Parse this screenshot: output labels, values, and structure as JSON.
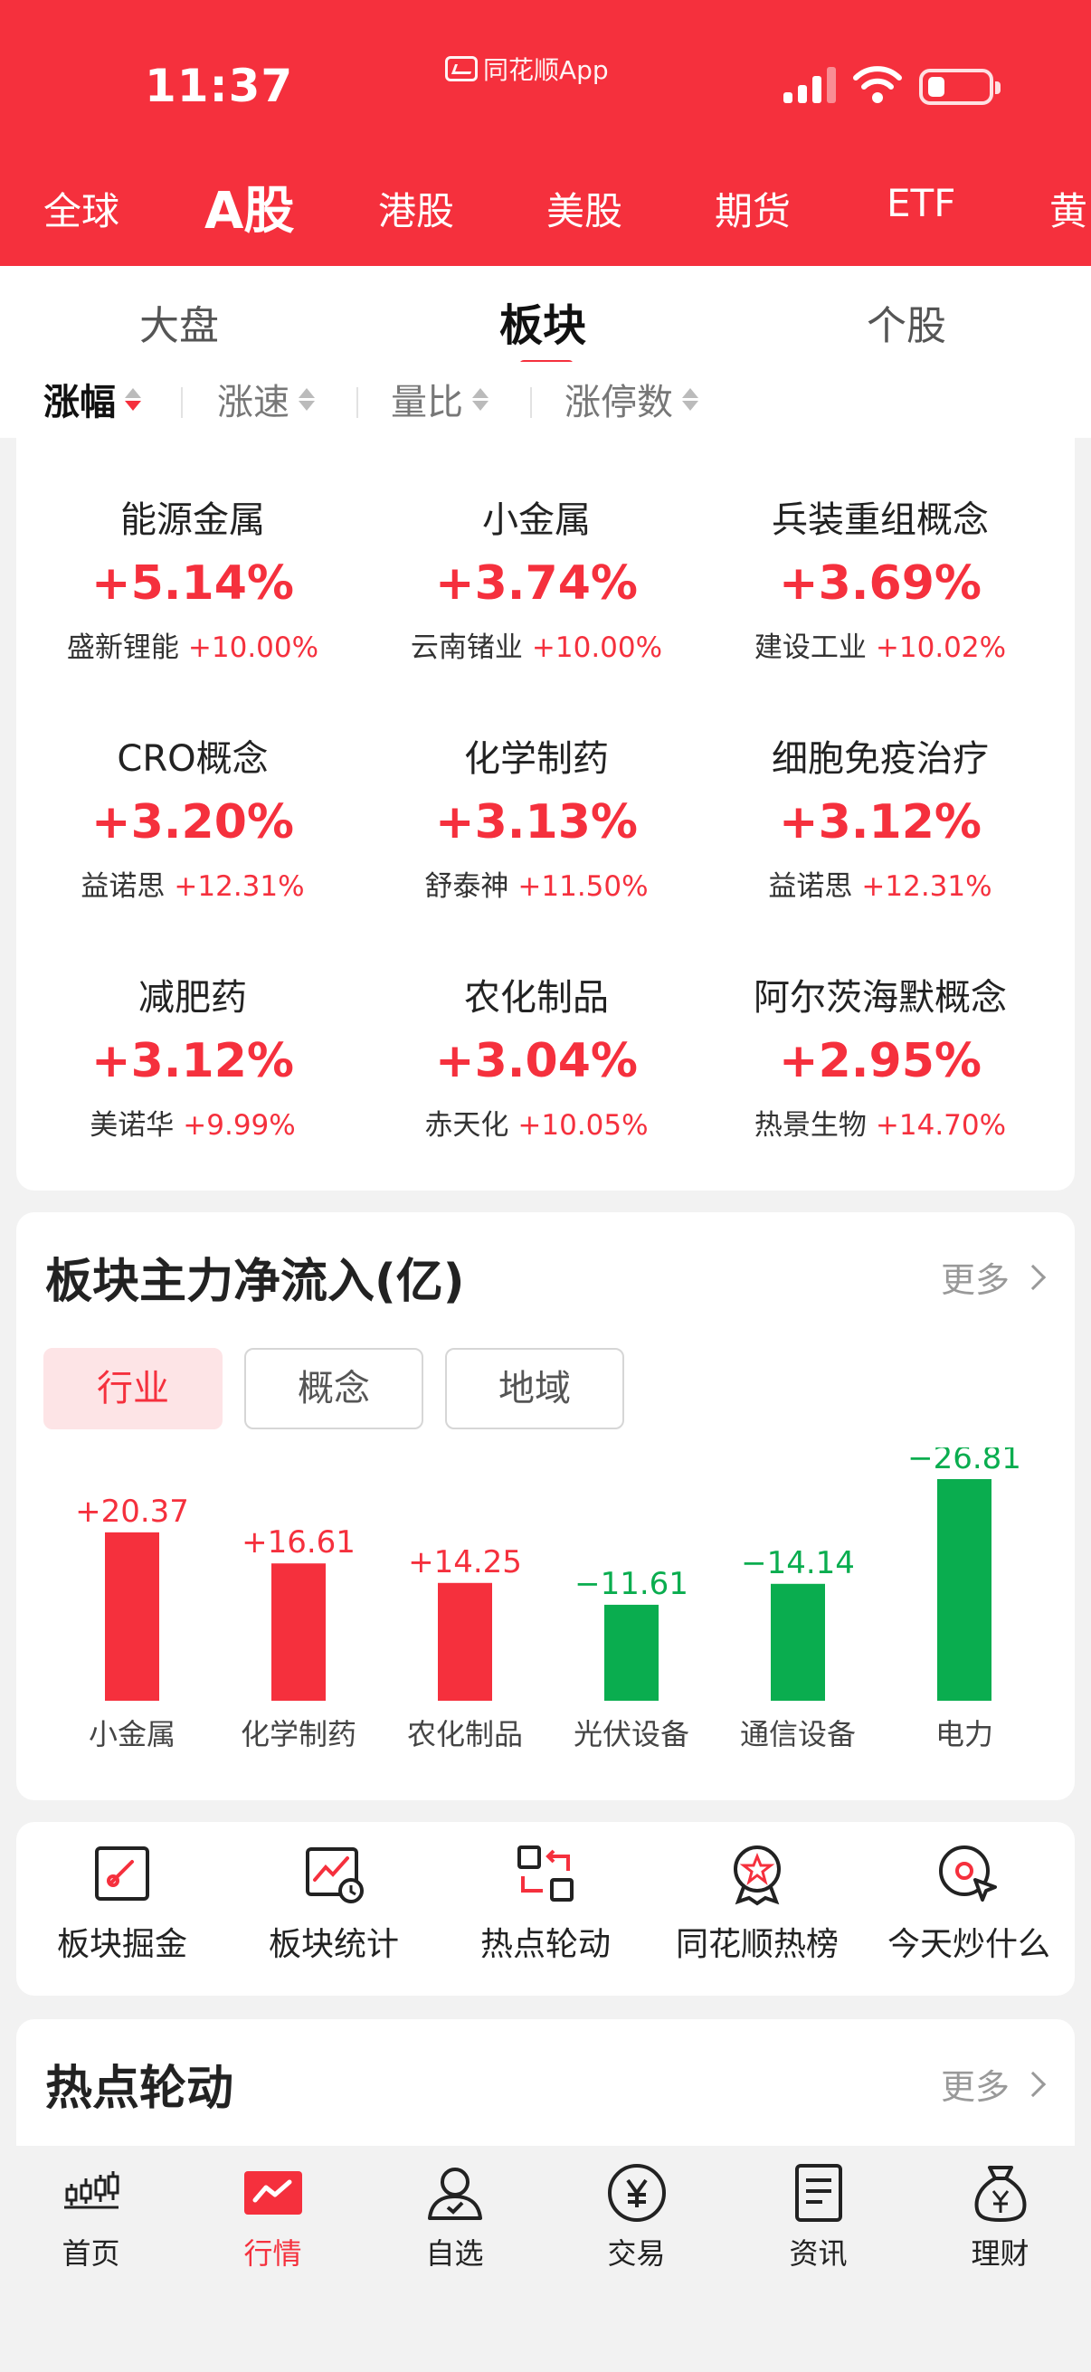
{
  "status_bar": {
    "time": "11:37",
    "app_name": "同花顺App"
  },
  "market_tabs": [
    {
      "label": "全球",
      "active": false
    },
    {
      "label": "A股",
      "active": true
    },
    {
      "label": "港股",
      "active": false
    },
    {
      "label": "美股",
      "active": false
    },
    {
      "label": "期货",
      "active": false
    },
    {
      "label": "ETF",
      "active": false
    },
    {
      "label": "黄",
      "active": false
    }
  ],
  "sub_tabs": [
    {
      "label": "大盘",
      "active": false
    },
    {
      "label": "板块",
      "active": true
    },
    {
      "label": "个股",
      "active": false
    }
  ],
  "sort_options": [
    {
      "label": "涨幅",
      "active": true
    },
    {
      "label": "涨速",
      "active": false
    },
    {
      "label": "量比",
      "active": false
    },
    {
      "label": "涨停数",
      "active": false
    }
  ],
  "sectors": [
    {
      "name": "能源金属",
      "change": "+5.14%",
      "leader": "盛新锂能",
      "leader_change": "+10.00%"
    },
    {
      "name": "小金属",
      "change": "+3.74%",
      "leader": "云南锗业",
      "leader_change": "+10.00%"
    },
    {
      "name": "兵装重组概念",
      "change": "+3.69%",
      "leader": "建设工业",
      "leader_change": "+10.02%"
    },
    {
      "name": "CRO概念",
      "change": "+3.20%",
      "leader": "益诺思",
      "leader_change": "+12.31%"
    },
    {
      "name": "化学制药",
      "change": "+3.13%",
      "leader": "舒泰神",
      "leader_change": "+11.50%"
    },
    {
      "name": "细胞免疫治疗",
      "change": "+3.12%",
      "leader": "益诺思",
      "leader_change": "+12.31%"
    },
    {
      "name": "减肥药",
      "change": "+3.12%",
      "leader": "美诺华",
      "leader_change": "+9.99%"
    },
    {
      "name": "农化制品",
      "change": "+3.04%",
      "leader": "赤天化",
      "leader_change": "+10.05%"
    },
    {
      "name": "阿尔茨海默概念",
      "change": "+2.95%",
      "leader": "热景生物",
      "leader_change": "+14.70%"
    }
  ],
  "flow": {
    "title": "板块主力净流入(亿)",
    "more": "更多",
    "segments": [
      {
        "label": "行业",
        "active": true
      },
      {
        "label": "概念",
        "active": false
      },
      {
        "label": "地域",
        "active": false
      }
    ]
  },
  "chart_data": {
    "type": "bar",
    "categories": [
      "小金属",
      "化学制药",
      "农化制品",
      "光伏设备",
      "通信设备",
      "电力"
    ],
    "values": [
      20.37,
      16.61,
      14.25,
      -11.61,
      -14.14,
      -26.81
    ],
    "value_labels": [
      "+20.37",
      "+16.61",
      "+14.25",
      "−11.61",
      "−14.14",
      "−26.81"
    ],
    "title": "板块主力净流入(亿)",
    "positive_color": "#f5303d",
    "negative_color": "#0aad4f",
    "note": "negative bars drawn upward by absolute value"
  },
  "tools": [
    {
      "label": "板块掘金",
      "icon": "sector-gold-icon"
    },
    {
      "label": "板块统计",
      "icon": "sector-stats-icon"
    },
    {
      "label": "热点轮动",
      "icon": "hot-rotation-icon"
    },
    {
      "label": "同花顺热榜",
      "icon": "hot-list-icon"
    },
    {
      "label": "今天炒什么",
      "icon": "today-pick-icon"
    }
  ],
  "hot": {
    "title": "热点轮动",
    "more": "更多"
  },
  "bottom_nav": [
    {
      "label": "首页",
      "icon": "home-candles-icon",
      "active": false
    },
    {
      "label": "行情",
      "icon": "market-chart-icon",
      "active": true
    },
    {
      "label": "自选",
      "icon": "watchlist-user-icon",
      "active": false
    },
    {
      "label": "交易",
      "icon": "yuan-coin-icon",
      "active": false
    },
    {
      "label": "资讯",
      "icon": "news-doc-icon",
      "active": false
    },
    {
      "label": "理财",
      "icon": "money-bag-icon",
      "active": false
    }
  ],
  "colors": {
    "brand_red": "#f5303d",
    "down_green": "#0aad4f"
  }
}
